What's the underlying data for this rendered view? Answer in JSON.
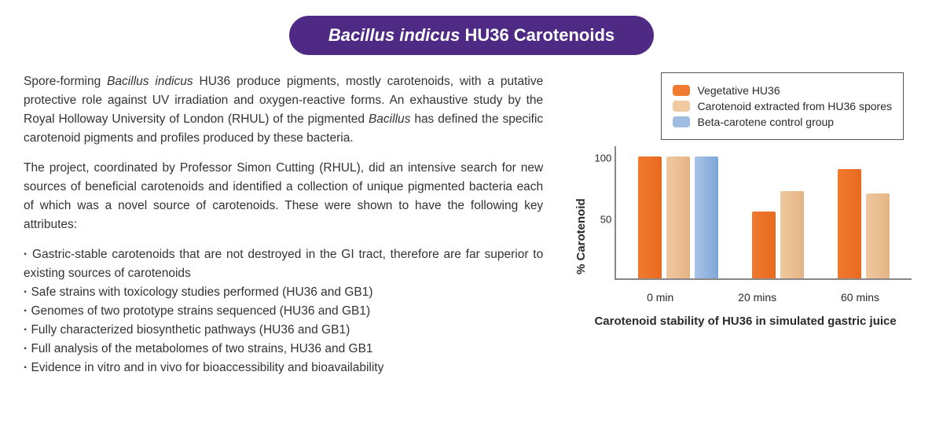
{
  "title": {
    "italic": "Bacillus indicus",
    "rest": " HU36 Carotenoids"
  },
  "para1_a": "Spore-forming ",
  "para1_em": "Bacillus indicus",
  "para1_b": " HU36 produce pigments, mostly carotenoids, with a putative protective role against UV irradiation and oxygen-reactive forms. An exhaustive study by the Royal Holloway University of London (RHUL) of the pigmented ",
  "para1_em2": "Bacillus",
  "para1_c": " has defined the specific carotenoid pigments and profiles produced by these bacteria.",
  "para2": "The project, coordinated by Professor Simon Cutting (RHUL), did an intensive search for new sources of beneficial carotenoids and identified a collection of unique pigmented bacteria each of which was a novel source of carotenoids. These were shown to have the following key attributes:",
  "bullets": [
    "Gastric-stable carotenoids that are not destroyed in the GI tract, therefore are far superior to existing sources of  carotenoids",
    "Safe strains with toxicology studies performed (HU36 and GB1)",
    "Genomes of two prototype strains sequenced (HU36 and GB1)",
    "Fully characterized biosynthetic pathways (HU36 and GB1)",
    "Full analysis of the metabolomes of two strains, HU36 and GB1",
    "Evidence in vitro and in vivo for bioaccessibility and bioavailability"
  ],
  "chart": {
    "type": "bar",
    "ylabel": "% Carotenoid",
    "caption": "Carotenoid stability of HU36 in simulated gastric juice",
    "yticks": [
      {
        "v": 100,
        "label": "100"
      },
      {
        "v": 50,
        "label": "50"
      }
    ],
    "ylim_max": 110,
    "categories": [
      "0 min",
      "20 mins",
      "60 mins"
    ],
    "legend": [
      {
        "label": "Vegetative HU36",
        "color": "#ee7b30"
      },
      {
        "label": "Carotenoid extracted from HU36 spores",
        "color": "#efc9a0"
      },
      {
        "label": "Beta-carotene control group",
        "color": "#9fbde0"
      }
    ],
    "series_colors": {
      "veg": "#ee7b30",
      "ext": "#efc9a0",
      "beta": "#9fbde0"
    },
    "groups": [
      {
        "bars": [
          {
            "cls": "grad-orange",
            "v": 100
          },
          {
            "cls": "grad-tan",
            "v": 100
          },
          {
            "cls": "grad-blue",
            "v": 100
          }
        ]
      },
      {
        "bars": [
          {
            "cls": "grad-orange",
            "v": 55
          },
          {
            "cls": "grad-tan",
            "v": 72
          }
        ]
      },
      {
        "bars": [
          {
            "cls": "grad-orange",
            "v": 90
          },
          {
            "cls": "grad-tan",
            "v": 70
          }
        ]
      }
    ],
    "axis_color": "#888888",
    "background_color": "#ffffff"
  }
}
